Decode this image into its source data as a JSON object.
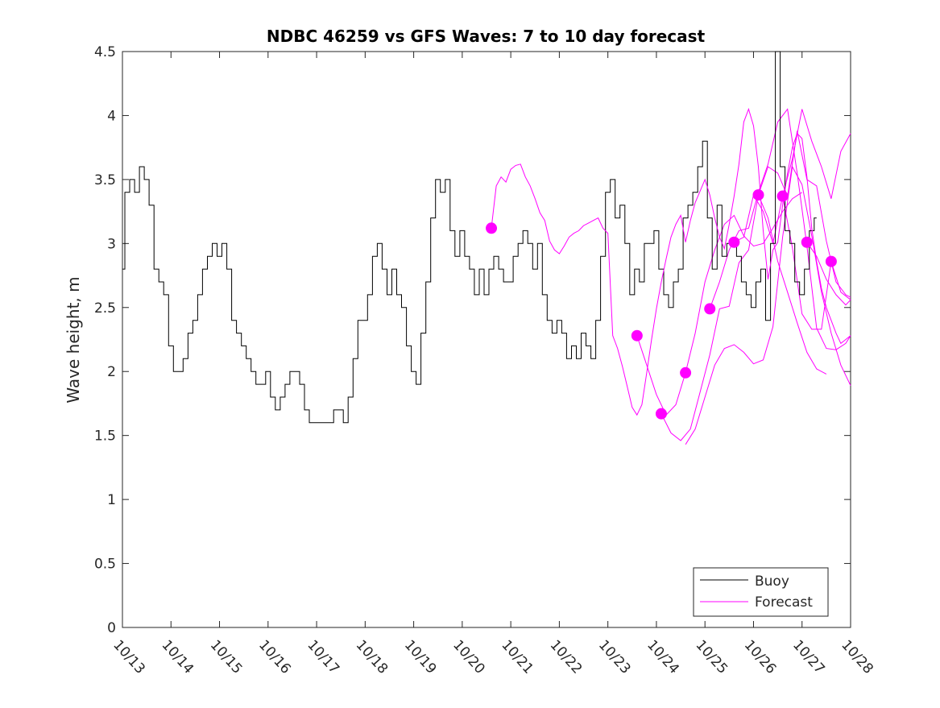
{
  "chart_data": {
    "type": "line",
    "title": "NDBC 46259 vs GFS Waves: 7 to 10 day forecast",
    "xlabel": "",
    "ylabel": "Wave height, m",
    "x_unit": "day of October",
    "xlim": [
      13,
      28
    ],
    "ylim": [
      0,
      4.5
    ],
    "grid": false,
    "legend_position": "bottom-right",
    "x_ticks": [
      13,
      14,
      15,
      16,
      17,
      18,
      19,
      20,
      21,
      22,
      23,
      24,
      25,
      26,
      27,
      28
    ],
    "x_tick_labels": [
      "10/13",
      "10/14",
      "10/15",
      "10/16",
      "10/17",
      "10/18",
      "10/19",
      "10/20",
      "10/21",
      "10/22",
      "10/23",
      "10/24",
      "10/25",
      "10/26",
      "10/27",
      "10/28"
    ],
    "y_ticks": [
      0,
      0.5,
      1,
      1.5,
      2,
      2.5,
      3,
      3.5,
      4,
      4.5
    ],
    "y_tick_labels": [
      "0",
      "0.5",
      "1",
      "1.5",
      "2",
      "2.5",
      "3",
      "3.5",
      "4",
      "4.5"
    ],
    "colors": {
      "buoy": "#000000",
      "forecast": "#ff00ff",
      "axis": "#262626"
    },
    "series": [
      {
        "name": "Buoy",
        "style": "line",
        "x": [
          13.0,
          13.1,
          13.2,
          13.3,
          13.4,
          13.5,
          13.6,
          13.7,
          13.8,
          13.9,
          14.0,
          14.1,
          14.2,
          14.3,
          14.4,
          14.5,
          14.6,
          14.7,
          14.8,
          14.9,
          15.0,
          15.1,
          15.2,
          15.3,
          15.4,
          15.5,
          15.6,
          15.7,
          15.8,
          15.9,
          16.0,
          16.1,
          16.2,
          16.3,
          16.4,
          16.5,
          16.6,
          16.7,
          16.8,
          16.9,
          17.0,
          17.1,
          17.2,
          17.3,
          17.4,
          17.5,
          17.6,
          17.7,
          17.8,
          17.9,
          18.0,
          18.1,
          18.2,
          18.3,
          18.4,
          18.5,
          18.6,
          18.7,
          18.8,
          18.9,
          19.0,
          19.1,
          19.2,
          19.3,
          19.4,
          19.5,
          19.6,
          19.7,
          19.8,
          19.9,
          20.0,
          20.1,
          20.2,
          20.3,
          20.4,
          20.5,
          20.6,
          20.7,
          20.8,
          20.9,
          21.0,
          21.1,
          21.2,
          21.3,
          21.4,
          21.5,
          21.6,
          21.7,
          21.8,
          21.9,
          22.0,
          22.1,
          22.2,
          22.3,
          22.4,
          22.5,
          22.6,
          22.7,
          22.8,
          22.9,
          23.0,
          23.1,
          23.2,
          23.3,
          23.4,
          23.5,
          23.6,
          23.7,
          23.8,
          23.9,
          24.0,
          24.1,
          24.2,
          24.3,
          24.4,
          24.5,
          24.6,
          24.7,
          24.8,
          24.9,
          25.0,
          25.1,
          25.2,
          25.3,
          25.4,
          25.5,
          25.6,
          25.7,
          25.8,
          25.9,
          26.0,
          26.1,
          26.2,
          26.3,
          26.4,
          26.5,
          26.6,
          26.7,
          26.8,
          26.9,
          27.0,
          27.1,
          27.2,
          27.3
        ],
        "y": [
          2.8,
          3.4,
          3.5,
          3.4,
          3.6,
          3.5,
          3.3,
          2.8,
          2.7,
          2.6,
          2.2,
          2.0,
          2.0,
          2.1,
          2.3,
          2.4,
          2.6,
          2.8,
          2.9,
          3.0,
          2.9,
          3.0,
          2.8,
          2.4,
          2.3,
          2.2,
          2.1,
          2.0,
          1.9,
          1.9,
          2.0,
          1.8,
          1.7,
          1.8,
          1.9,
          2.0,
          2.0,
          1.9,
          1.7,
          1.6,
          1.6,
          1.6,
          1.6,
          1.6,
          1.7,
          1.7,
          1.6,
          1.8,
          2.1,
          2.4,
          2.4,
          2.6,
          2.9,
          3.0,
          2.8,
          2.6,
          2.8,
          2.6,
          2.5,
          2.2,
          2.0,
          1.9,
          2.3,
          2.7,
          3.2,
          3.5,
          3.4,
          3.5,
          3.1,
          2.9,
          3.1,
          2.9,
          2.8,
          2.6,
          2.8,
          2.6,
          2.8,
          2.9,
          2.8,
          2.7,
          2.7,
          2.9,
          3.0,
          3.1,
          3.0,
          2.8,
          3.0,
          2.6,
          2.4,
          2.3,
          2.4,
          2.3,
          2.1,
          2.2,
          2.1,
          2.3,
          2.2,
          2.1,
          2.4,
          2.9,
          3.4,
          3.5,
          3.2,
          3.3,
          3.0,
          2.6,
          2.8,
          2.7,
          3.0,
          3.0,
          3.1,
          2.8,
          2.6,
          2.5,
          2.7,
          2.8,
          3.2,
          3.3,
          3.4,
          3.6,
          3.8,
          3.2,
          2.8,
          3.3,
          2.9,
          3.0,
          3.0,
          2.9,
          2.7,
          2.6,
          2.5,
          2.7,
          2.8,
          2.4,
          3.0,
          4.5,
          3.6,
          3.1,
          3.0,
          2.7,
          2.6,
          2.8,
          3.1,
          3.2
        ]
      },
      {
        "name": "Forecast",
        "style": "line",
        "x": [
          20.6,
          20.7,
          20.8,
          20.9,
          21.0,
          21.1,
          21.2,
          21.3,
          21.4,
          21.5,
          21.6,
          21.7,
          21.8,
          21.9,
          22.0,
          22.1,
          22.2,
          22.3,
          22.4,
          22.5,
          22.6,
          22.7,
          22.8,
          22.9,
          23.0,
          23.1,
          23.2,
          23.3,
          23.4,
          23.5,
          23.6,
          23.7,
          23.8,
          23.9,
          24.0,
          24.1,
          24.2,
          24.3,
          24.4,
          24.5,
          24.6,
          24.7,
          24.8,
          24.9,
          25.0,
          25.1,
          25.2,
          25.3,
          25.4,
          25.5,
          25.6,
          25.7,
          25.8,
          25.9,
          26.0,
          26.1,
          26.2,
          26.3,
          26.4,
          26.5,
          26.6,
          26.7,
          26.8,
          26.9,
          27.0,
          27.1,
          27.2,
          27.3,
          27.4,
          27.5,
          27.6,
          27.7,
          27.8,
          27.9,
          28.0
        ],
        "y": [
          3.12,
          3.45,
          3.52,
          3.48,
          3.58,
          3.61,
          3.62,
          3.52,
          3.45,
          3.35,
          3.24,
          3.18,
          3.02,
          2.95,
          2.92,
          2.98,
          3.05,
          3.08,
          3.1,
          3.14,
          3.16,
          3.18,
          3.2,
          3.12,
          3.08,
          2.28,
          2.18,
          2.04,
          1.88,
          1.72,
          1.66,
          1.74,
          1.99,
          2.25,
          2.49,
          2.7,
          2.88,
          3.05,
          3.15,
          3.22,
          3.01,
          3.18,
          3.32,
          3.41,
          3.5,
          3.38,
          3.2,
          3.05,
          2.96,
          3.15,
          3.37,
          3.62,
          3.95,
          4.05,
          3.92,
          3.6,
          3.1,
          2.72,
          2.95,
          3.01,
          3.3,
          3.55,
          3.75,
          3.86,
          3.82,
          3.52,
          3.12,
          2.86,
          2.65,
          2.5,
          2.4,
          2.3,
          2.22,
          2.25,
          2.28
        ]
      },
      {
        "name": "",
        "style": "markers",
        "x": [
          20.6,
          23.6,
          24.1,
          24.6,
          25.1,
          25.6,
          26.1,
          26.6,
          27.1,
          27.6
        ],
        "y": [
          3.12,
          2.28,
          1.67,
          1.99,
          2.49,
          3.01,
          3.38,
          3.37,
          3.01,
          2.86
        ]
      }
    ],
    "forecast_traces": [
      {
        "x": [
          23.6,
          23.8,
          24.0,
          24.2,
          24.4,
          24.6,
          24.8,
          25.0,
          25.2,
          25.4,
          25.6,
          25.8,
          26.0,
          26.2,
          26.4,
          26.6,
          26.8,
          27.0
        ],
        "y": [
          2.28,
          2.05,
          1.82,
          1.66,
          1.74,
          1.99,
          2.3,
          2.7,
          2.95,
          3.15,
          3.22,
          3.06,
          2.98,
          3.0,
          3.12,
          3.25,
          3.35,
          3.4
        ]
      },
      {
        "x": [
          24.1,
          24.3,
          24.5,
          24.7,
          24.9,
          25.1,
          25.3,
          25.5,
          25.7,
          25.9,
          26.1,
          26.3,
          26.5,
          26.7,
          26.9,
          27.1,
          27.3,
          27.5
        ],
        "y": [
          1.67,
          1.52,
          1.46,
          1.55,
          1.84,
          2.13,
          2.49,
          2.51,
          2.85,
          2.95,
          3.38,
          3.2,
          2.86,
          2.62,
          2.38,
          2.15,
          2.02,
          1.98
        ]
      },
      {
        "x": [
          24.6,
          24.8,
          25.0,
          25.2,
          25.4,
          25.6,
          25.8,
          26.0,
          26.2,
          26.4,
          26.6,
          26.8,
          27.0,
          27.2,
          27.4,
          27.6,
          27.8,
          28.0
        ],
        "y": [
          1.43,
          1.55,
          1.8,
          2.05,
          2.18,
          2.21,
          2.15,
          2.06,
          2.09,
          2.35,
          3.05,
          3.6,
          3.46,
          3.06,
          2.62,
          2.3,
          2.05,
          1.89
        ]
      },
      {
        "x": [
          25.1,
          25.3,
          25.5,
          25.7,
          25.9,
          26.1,
          26.3,
          26.5,
          26.7,
          26.9,
          27.1,
          27.3,
          27.5,
          27.7,
          27.9,
          28.0
        ],
        "y": [
          2.49,
          2.7,
          2.95,
          3.1,
          3.12,
          3.4,
          3.62,
          3.95,
          4.05,
          3.55,
          2.98,
          2.34,
          2.18,
          2.17,
          2.22,
          2.28
        ]
      },
      {
        "x": [
          25.6,
          25.8,
          26.0,
          26.2,
          26.4,
          26.6,
          26.8,
          27.0,
          27.2,
          27.4,
          27.6,
          27.8,
          28.0
        ],
        "y": [
          3.01,
          3.05,
          3.38,
          3.25,
          3.0,
          3.37,
          2.97,
          2.45,
          2.33,
          2.33,
          2.86,
          2.62,
          2.56
        ]
      },
      {
        "x": [
          26.1,
          26.3,
          26.5,
          26.7,
          26.9,
          27.1,
          27.3,
          27.5,
          27.7,
          27.9,
          28.0
        ],
        "y": [
          3.38,
          3.6,
          3.55,
          3.37,
          3.88,
          3.5,
          3.45,
          3.02,
          2.7,
          2.6,
          2.58
        ]
      },
      {
        "x": [
          26.6,
          26.8,
          27.0,
          27.2,
          27.4,
          27.6,
          27.8,
          28.0
        ],
        "y": [
          3.37,
          3.66,
          4.05,
          3.8,
          3.6,
          3.35,
          3.72,
          3.86
        ]
      },
      {
        "x": [
          27.1,
          27.3,
          27.5,
          27.7,
          27.9,
          28.0
        ],
        "y": [
          3.01,
          2.9,
          2.72,
          2.6,
          2.52,
          2.56
        ]
      }
    ]
  }
}
